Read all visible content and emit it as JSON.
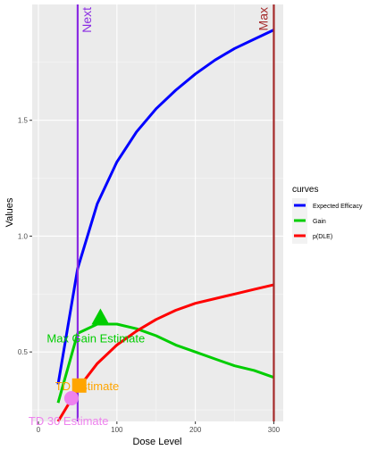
{
  "chart_data": {
    "type": "line",
    "xlabel": "Dose Level",
    "ylabel": "Values",
    "xlim": [
      -8,
      312
    ],
    "ylim": [
      0.2,
      2.0
    ],
    "x_ticks": [
      0,
      100,
      200,
      300
    ],
    "x_tick_labels": [
      "0",
      "100",
      "200",
      "300"
    ],
    "y_ticks": [
      0.5,
      1.0,
      1.5
    ],
    "y_tick_labels": [
      "0.5",
      "1.0",
      "1.5"
    ],
    "grid": true,
    "legend": {
      "title": "curves",
      "position": "right",
      "entries": [
        {
          "label": "Expected Efficacy",
          "color": "#0000ff"
        },
        {
          "label": "Gain",
          "color": "#00cd00"
        },
        {
          "label": "p(DLE)",
          "color": "#ff0000"
        }
      ]
    },
    "series": [
      {
        "name": "Expected Efficacy",
        "color": "#0000ff",
        "x": [
          25,
          50,
          75,
          100,
          125,
          150,
          175,
          200,
          225,
          250,
          275,
          300
        ],
        "y": [
          0.36,
          0.86,
          1.14,
          1.32,
          1.45,
          1.55,
          1.63,
          1.7,
          1.76,
          1.81,
          1.85,
          1.89
        ]
      },
      {
        "name": "Gain",
        "color": "#00cd00",
        "x": [
          25,
          50,
          75,
          100,
          125,
          150,
          175,
          200,
          225,
          250,
          275,
          300
        ],
        "y": [
          0.28,
          0.58,
          0.62,
          0.62,
          0.6,
          0.57,
          0.53,
          0.5,
          0.47,
          0.44,
          0.42,
          0.39
        ]
      },
      {
        "name": "p(DLE)",
        "color": "#ff0000",
        "x": [
          25,
          50,
          75,
          100,
          125,
          150,
          175,
          200,
          225,
          250,
          275,
          300
        ],
        "y": [
          0.2,
          0.34,
          0.45,
          0.53,
          0.59,
          0.64,
          0.68,
          0.71,
          0.73,
          0.75,
          0.77,
          0.79
        ]
      }
    ],
    "vlines": [
      {
        "label": "Next",
        "x": 50,
        "color": "#8a2be2"
      },
      {
        "label": "Max",
        "x": 300,
        "color": "#a52a2a"
      }
    ],
    "markers": [
      {
        "label": "Max Gain Estimate",
        "x": 79,
        "y": 0.645,
        "shape": "triangle",
        "color": "#00cd00"
      },
      {
        "label": "TD   Estimate",
        "x": 52,
        "y": 0.355,
        "shape": "square",
        "color": "#ffa500"
      },
      {
        "label": "TD 30 Estimate",
        "x": 42,
        "y": 0.3,
        "shape": "circle",
        "color": "#ee82ee"
      }
    ]
  }
}
